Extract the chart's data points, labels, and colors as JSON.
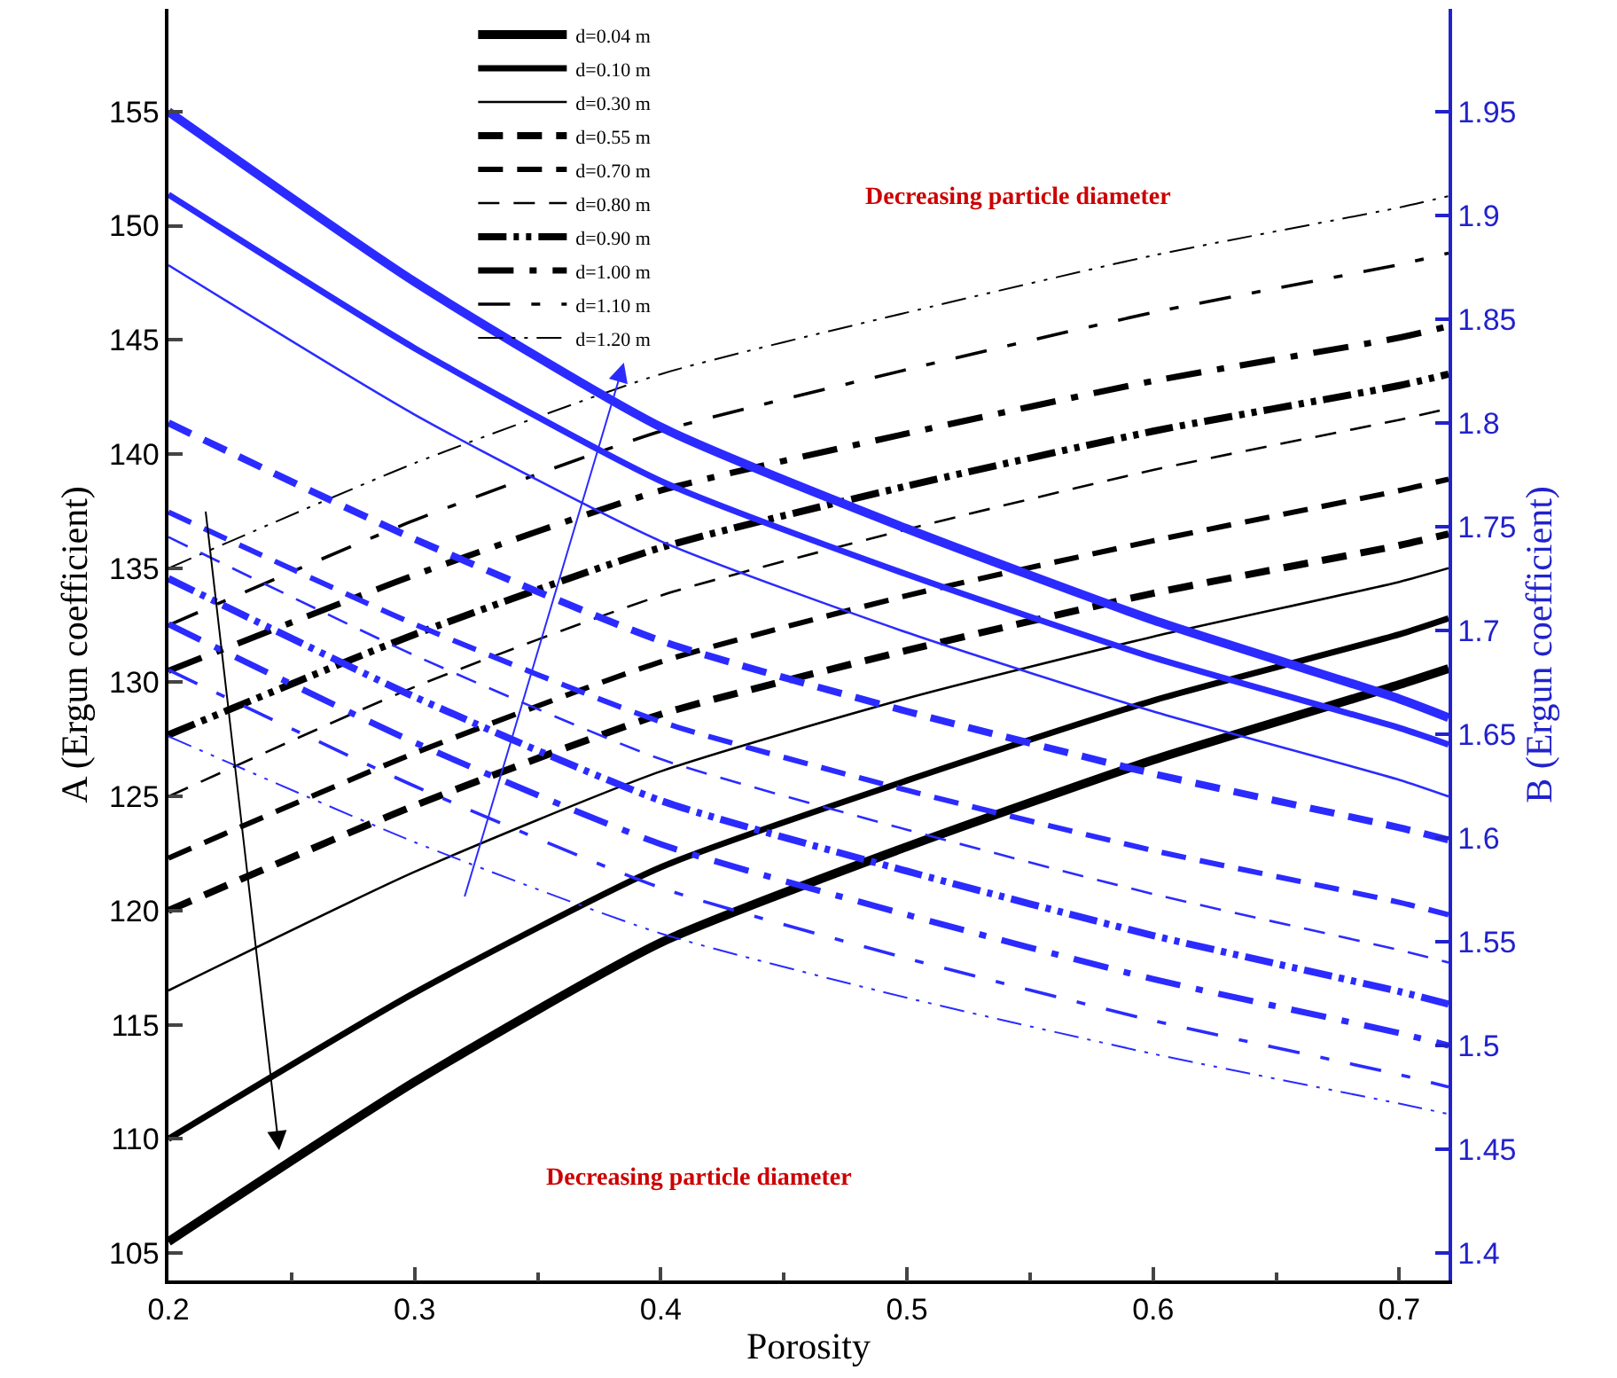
{
  "chart_data": {
    "type": "line",
    "xlabel": "Porosity",
    "ylabel": "A (Ergun coefficient)",
    "y2label": "B (Ergun coefficient)",
    "x": [
      0.2,
      0.3,
      0.4,
      0.5,
      0.6,
      0.7,
      0.72
    ],
    "xlim": [
      0.2,
      0.72
    ],
    "xticks": [
      0.2,
      0.3,
      0.4,
      0.5,
      0.6,
      0.7
    ],
    "ylim": [
      103.8,
      159.5
    ],
    "yticks": [
      105,
      110,
      115,
      120,
      125,
      130,
      135,
      140,
      145,
      150,
      155
    ],
    "y2lim": [
      1.3868,
      1.9995
    ],
    "y2ticks": [
      1.4,
      1.45,
      1.5,
      1.55,
      1.6,
      1.65,
      1.7,
      1.75,
      1.8,
      1.85,
      1.9,
      1.95
    ],
    "legend": "top left",
    "marker": "none",
    "annotations": [
      "Decreasing particle diameter",
      "Decreasing particle diameter"
    ],
    "series": [
      {
        "name": "d=0.04 m",
        "color": "#000000",
        "line_style": "solid",
        "values": [
          105.5,
          112.5,
          118.6,
          122.8,
          126.6,
          129.9,
          130.6
        ]
      },
      {
        "name": "d=0.10 m",
        "color": "#000000",
        "line_style": "solid",
        "values": [
          110.0,
          116.4,
          121.9,
          125.7,
          129.2,
          132.1,
          132.8
        ]
      },
      {
        "name": "d=0.30 m",
        "color": "#000000",
        "line_style": "solid",
        "values": [
          116.5,
          121.7,
          126.1,
          129.3,
          132.0,
          134.4,
          135.0
        ]
      },
      {
        "name": "d=0.55 m",
        "color": "#000000",
        "line_style": "dashed",
        "values": [
          120.0,
          124.6,
          128.6,
          131.4,
          133.9,
          136.0,
          136.5
        ]
      },
      {
        "name": "d=0.70 m",
        "color": "#000000",
        "line_style": "dashed",
        "values": [
          122.3,
          126.9,
          130.9,
          133.8,
          136.2,
          138.4,
          138.9
        ]
      },
      {
        "name": "d=0.80 m",
        "color": "#000000",
        "line_style": "dashed",
        "values": [
          125.0,
          129.8,
          133.8,
          136.7,
          139.3,
          141.5,
          142.0
        ]
      },
      {
        "name": "d=0.90 m",
        "color": "#000000",
        "line_style": "dashed",
        "values": [
          127.7,
          132.1,
          135.9,
          138.6,
          141.0,
          143.0,
          143.5
        ]
      },
      {
        "name": "d=1.00 m",
        "color": "#000000",
        "line_style": "dashed",
        "values": [
          130.5,
          134.7,
          138.4,
          140.9,
          143.2,
          145.1,
          145.6
        ]
      },
      {
        "name": "d=1.10 m",
        "color": "#000000",
        "line_style": "dashed",
        "values": [
          132.5,
          137.1,
          141.0,
          143.7,
          146.2,
          148.3,
          148.8
        ]
      },
      {
        "name": "d=1.20 m",
        "color": "#000000",
        "line_style": "dashed",
        "values": [
          135.0,
          139.6,
          143.5,
          146.2,
          148.7,
          150.8,
          151.3
        ]
      },
      {
        "color": "#2b2bff",
        "axis": "y2",
        "line_style": "solid",
        "values": [
          1.95,
          1.868,
          1.798,
          1.749,
          1.705,
          1.667,
          1.658
        ]
      },
      {
        "color": "#2b2bff",
        "axis": "y2",
        "line_style": "solid",
        "values": [
          1.91,
          1.836,
          1.772,
          1.727,
          1.687,
          1.653,
          1.645
        ]
      },
      {
        "color": "#2b2bff",
        "axis": "y2",
        "line_style": "solid",
        "values": [
          1.876,
          1.804,
          1.743,
          1.699,
          1.661,
          1.628,
          1.62
        ]
      },
      {
        "color": "#2b2bff",
        "axis": "y2",
        "line_style": "dashed",
        "values": [
          1.8,
          1.744,
          1.695,
          1.661,
          1.631,
          1.605,
          1.599
        ]
      },
      {
        "color": "#2b2bff",
        "axis": "y2",
        "line_style": "dashed",
        "values": [
          1.757,
          1.703,
          1.656,
          1.623,
          1.594,
          1.569,
          1.563
        ]
      },
      {
        "color": "#2b2bff",
        "axis": "y2",
        "line_style": "dashed",
        "values": [
          1.745,
          1.688,
          1.638,
          1.604,
          1.573,
          1.546,
          1.54
        ]
      },
      {
        "color": "#2b2bff",
        "axis": "y2",
        "line_style": "dashed",
        "values": [
          1.725,
          1.668,
          1.618,
          1.584,
          1.553,
          1.526,
          1.52
        ]
      },
      {
        "color": "#2b2bff",
        "axis": "y2",
        "line_style": "dashed",
        "values": [
          1.703,
          1.646,
          1.597,
          1.563,
          1.532,
          1.506,
          1.5
        ]
      },
      {
        "color": "#2b2bff",
        "axis": "y2",
        "line_style": "dashed",
        "values": [
          1.681,
          1.625,
          1.576,
          1.542,
          1.512,
          1.486,
          1.48
        ]
      },
      {
        "color": "#2b2bff",
        "axis": "y2",
        "line_style": "dashed",
        "values": [
          1.649,
          1.598,
          1.554,
          1.523,
          1.496,
          1.472,
          1.467
        ]
      }
    ]
  }
}
